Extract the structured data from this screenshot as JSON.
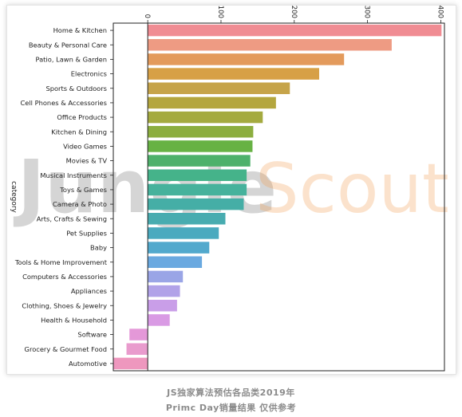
{
  "chart_data": {
    "type": "bar",
    "orientation": "horizontal",
    "ylabel": "category",
    "xlim": [
      -47,
      405
    ],
    "xticks": [
      0,
      100,
      200,
      300,
      400
    ],
    "xaxis_position": "top",
    "grid": false,
    "categories": [
      "Home & Kitchen",
      "Beauty & Personal Care",
      "Patio, Lawn & Garden",
      "Electronics",
      "Sports & Outdoors",
      "Cell Phones & Accessories",
      "Office Products",
      "Kitchen & Dining",
      "Video Games",
      "Movies & TV",
      "Musical Instruments",
      "Toys & Games",
      "Camera & Photo",
      "Arts, Crafts & Sewing",
      "Pet Supplies",
      "Baby",
      "Tools & Home Improvement",
      "Computers & Accessories",
      "Appliances",
      "Clothing, Shoes & Jewelry",
      "Health & Household",
      "Software",
      "Grocery & Gourmet Food",
      "Automotive"
    ],
    "values": [
      401,
      333,
      268,
      234,
      194,
      175,
      157,
      144,
      143,
      140,
      135,
      135,
      131,
      106,
      97,
      84,
      74,
      48,
      44,
      40,
      30,
      -25,
      -29,
      -47
    ],
    "colors": [
      "#f08c93",
      "#ee9b83",
      "#e39a5c",
      "#d7a046",
      "#c6a44a",
      "#b4a63e",
      "#a4aa3f",
      "#8cae3f",
      "#67b244",
      "#4eb16b",
      "#45b38a",
      "#46b29c",
      "#45aea6",
      "#48acb0",
      "#4aaabf",
      "#52a9cd",
      "#6aa9e0",
      "#9aa5e6",
      "#b1a2e8",
      "#c99ee8",
      "#d99ae4",
      "#e498d8",
      "#e99bcd",
      "#ee97be"
    ]
  },
  "watermark": {
    "jungle": "Jungle",
    "scout": "Scout"
  },
  "caption": {
    "line1": "JS独家算法预估各品类2019年",
    "line2": "Primc Day销量结果 仅供参考"
  }
}
